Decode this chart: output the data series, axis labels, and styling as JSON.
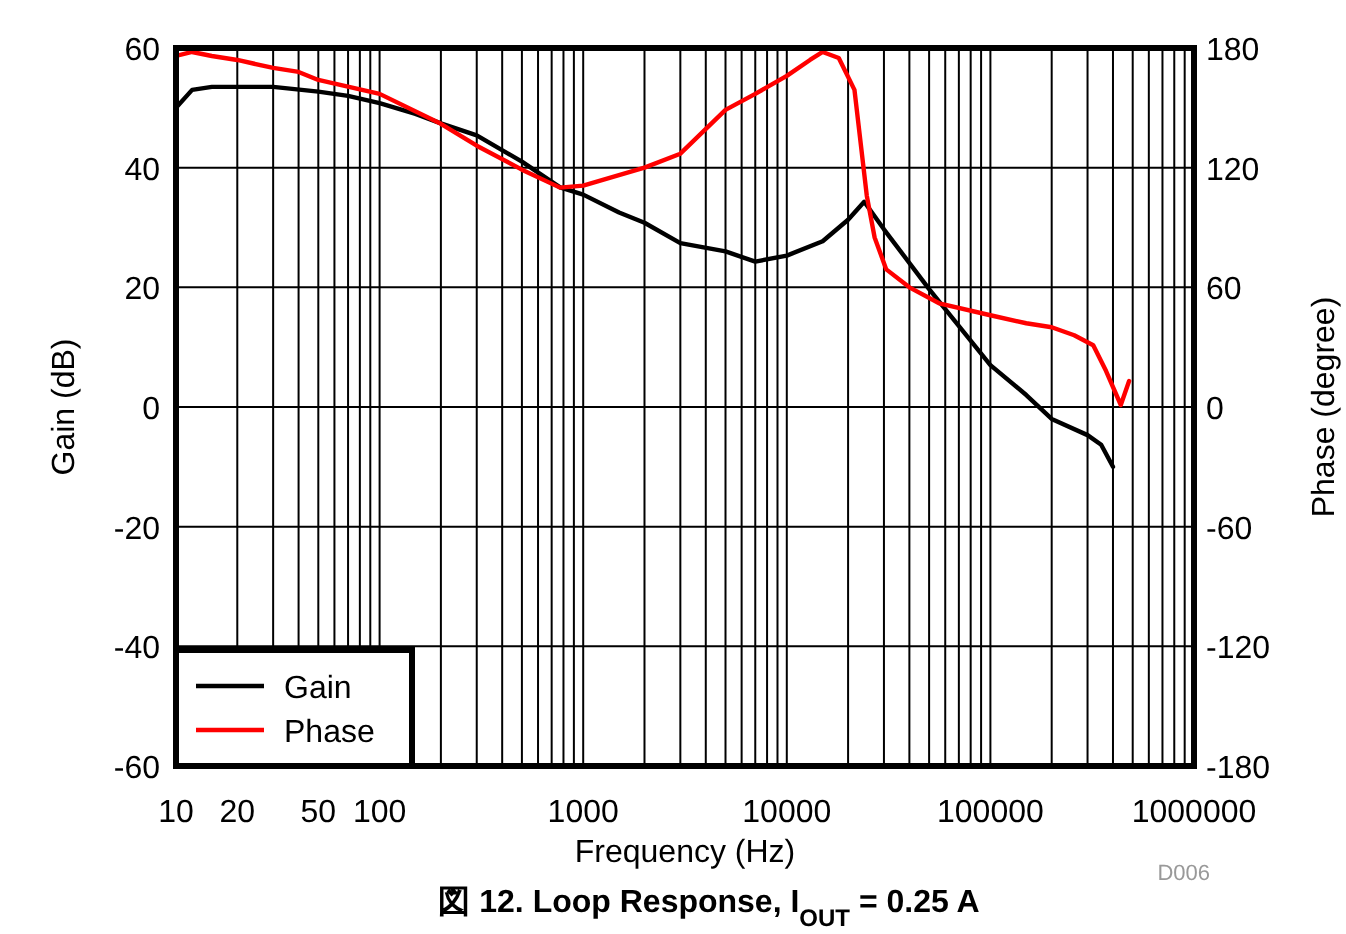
{
  "chart_data": {
    "type": "line",
    "title": "図 12. Loop Response, I$_{OUT}$ = 0.25 A",
    "xlabel": "Frequency (Hz)",
    "ylabel": "Gain (dB)",
    "y2label": "Phase (degree)",
    "annotations": [
      "D006"
    ],
    "log": "x",
    "xlim": [
      10,
      1000000
    ],
    "xticks": [
      10,
      20,
      {
        "value": 30,
        "label": null
      },
      {
        "value": 40,
        "label": null
      },
      50,
      {
        "value": 60,
        "label": null
      },
      {
        "value": 70,
        "label": null
      },
      {
        "value": 80,
        "label": null
      },
      {
        "value": 90,
        "label": null
      },
      100,
      {
        "value": 200,
        "label": null
      },
      {
        "value": 300,
        "label": null
      },
      {
        "value": 400,
        "label": null
      },
      {
        "value": 500,
        "label": null
      },
      {
        "value": 600,
        "label": null
      },
      {
        "value": 700,
        "label": null
      },
      {
        "value": 800,
        "label": null
      },
      {
        "value": 900,
        "label": null
      },
      1000,
      {
        "value": 2000,
        "label": null
      },
      {
        "value": 3000,
        "label": null
      },
      {
        "value": 4000,
        "label": null
      },
      {
        "value": 5000,
        "label": null
      },
      {
        "value": 6000,
        "label": null
      },
      {
        "value": 7000,
        "label": null
      },
      {
        "value": 8000,
        "label": null
      },
      {
        "value": 9000,
        "label": null
      },
      10000,
      {
        "value": 20000,
        "label": null
      },
      {
        "value": 30000,
        "label": null
      },
      {
        "value": 40000,
        "label": null
      },
      {
        "value": 50000,
        "label": null
      },
      {
        "value": 60000,
        "label": null
      },
      {
        "value": 70000,
        "label": null
      },
      {
        "value": 80000,
        "label": null
      },
      {
        "value": 90000,
        "label": null
      },
      100000,
      {
        "value": 200000,
        "label": null
      },
      {
        "value": 300000,
        "label": null
      },
      {
        "value": 400000,
        "label": null
      },
      {
        "value": 500000,
        "label": null
      },
      {
        "value": 600000,
        "label": null
      },
      {
        "value": 700000,
        "label": null
      },
      {
        "value": 800000,
        "label": null
      },
      {
        "value": 900000,
        "label": null
      },
      1000000
    ],
    "ylim": [
      -60,
      60
    ],
    "yticks": [
      -60,
      -40,
      -20,
      0,
      20,
      40,
      60
    ],
    "y2lim": [
      -180,
      180
    ],
    "y2ticks": [
      -180,
      -120,
      -60,
      0,
      60,
      120,
      180
    ],
    "grid": true,
    "legend": "bottom left",
    "marker": "none",
    "line_style": "solid",
    "series": [
      {
        "name": "Gain",
        "color": "#000000",
        "axis": "y",
        "x": [
          10,
          12,
          15,
          20,
          30,
          50,
          70,
          100,
          150,
          200,
          300,
          500,
          770,
          1000,
          1500,
          2000,
          3000,
          5000,
          7000,
          10000,
          15000,
          20000,
          24000,
          30000,
          50000,
          100000,
          150000,
          200000,
          300000,
          350000,
          400000
        ],
        "values": [
          50,
          53,
          53.5,
          53.5,
          53.5,
          52.7,
          52,
          50.8,
          49,
          47.4,
          45.4,
          41,
          36.7,
          35.5,
          32.5,
          30.8,
          27.4,
          26,
          24.3,
          25.3,
          27.7,
          31.3,
          34.3,
          29.7,
          19.7,
          7,
          2,
          -2,
          -4.7,
          -6.3,
          -10
        ]
      },
      {
        "name": "Phase",
        "color": "#ff0000",
        "axis": "y2",
        "x": [
          10,
          12,
          15,
          20,
          30,
          40,
          50,
          100,
          200,
          300,
          500,
          770,
          1000,
          2000,
          3000,
          5000,
          7000,
          10000,
          13000,
          15000,
          18000,
          21500,
          24700,
          27000,
          30800,
          40000,
          56000,
          100000,
          150000,
          200000,
          258000,
          320000,
          370000,
          437000,
          480000
        ],
        "values": [
          176,
          178,
          176,
          174,
          170,
          168,
          164,
          157,
          142,
          131,
          119,
          110,
          111,
          120,
          127,
          149,
          157,
          166,
          174,
          178,
          175,
          159,
          106,
          85,
          69,
          60,
          52,
          46,
          42,
          40,
          36,
          31,
          18,
          1,
          13
        ]
      }
    ]
  }
}
